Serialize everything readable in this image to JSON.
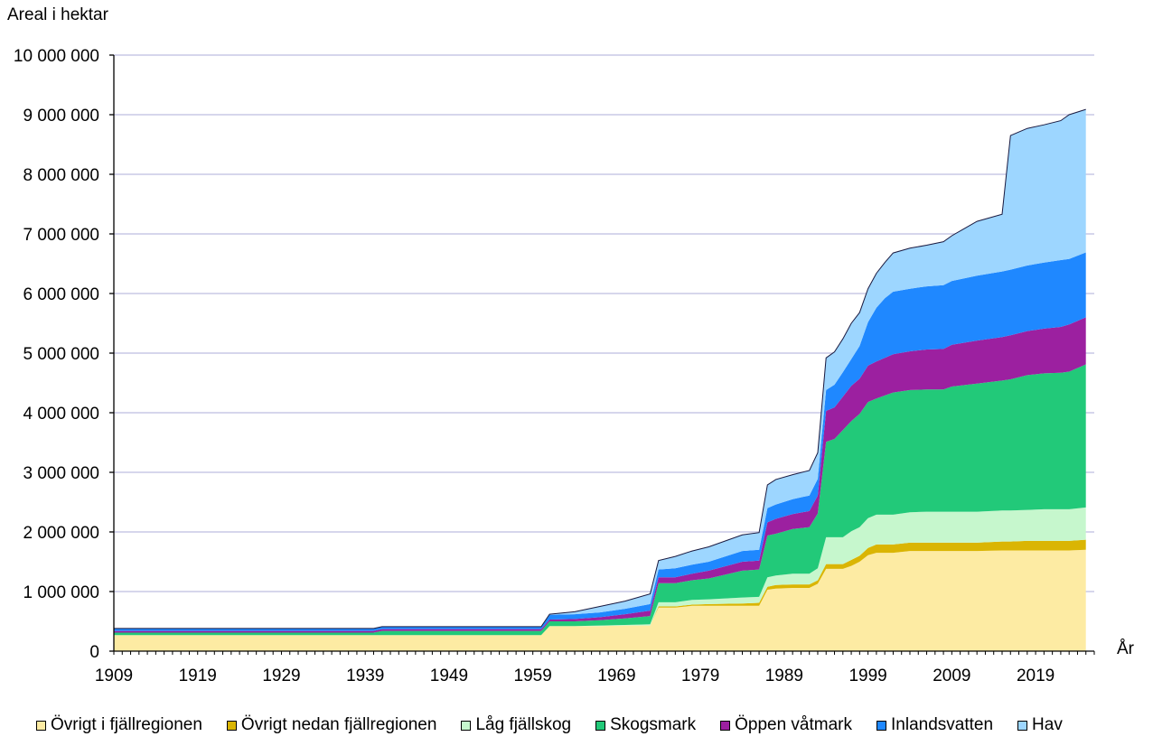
{
  "chart_data": {
    "type": "area",
    "stacked": true,
    "ylabel": "Areal i hektar",
    "xlabel": "År",
    "ylim": [
      0,
      10000000
    ],
    "xlim": [
      1909,
      2026
    ],
    "grid": true,
    "legend_position": "bottom",
    "yticks": [
      0,
      1000000,
      2000000,
      3000000,
      4000000,
      5000000,
      6000000,
      7000000,
      8000000,
      9000000,
      10000000
    ],
    "ytick_labels": [
      "0",
      "1 000 000",
      "2 000 000",
      "3 000 000",
      "4 000 000",
      "5 000 000",
      "6 000 000",
      "7 000 000",
      "8 000 000",
      "9 000 000",
      "10 000 000"
    ],
    "xticks": [
      1909,
      1919,
      1929,
      1939,
      1949,
      1959,
      1969,
      1979,
      1989,
      1999,
      2009,
      2019
    ],
    "x": [
      1909,
      1930,
      1939,
      1940,
      1941,
      1960,
      1961,
      1964,
      1967,
      1970,
      1973,
      1974,
      1976,
      1978,
      1980,
      1984,
      1986,
      1987,
      1988,
      1990,
      1992,
      1993,
      1994,
      1995,
      1996,
      1997,
      1998,
      1999,
      2000,
      2001,
      2002,
      2004,
      2006,
      2008,
      2009,
      2012,
      2015,
      2016,
      2018,
      2020,
      2022,
      2023,
      2025
    ],
    "series": [
      {
        "name": "Övrigt i fjällregionen",
        "color": "#FDEBA3",
        "values": [
          270000,
          270000,
          270000,
          270000,
          270000,
          270000,
          420000,
          420000,
          420000,
          430000,
          430000,
          730000,
          730000,
          760000,
          760000,
          760000,
          760000,
          1030000,
          1050000,
          1060000,
          1060000,
          1130000,
          1380000,
          1380000,
          1380000,
          1430000,
          1500000,
          1610000,
          1650000,
          1650000,
          1650000,
          1680000,
          1680000,
          1680000,
          1680000,
          1680000,
          1690000,
          1690000,
          1690000,
          1690000,
          1690000,
          1690000,
          1700000
        ]
      },
      {
        "name": "Övrigt nedan fjällregionen",
        "color": "#DAB503",
        "values": [
          0,
          0,
          0,
          0,
          0,
          0,
          0,
          0,
          0,
          0,
          0,
          20000,
          20000,
          20000,
          30000,
          40000,
          50000,
          50000,
          60000,
          60000,
          60000,
          60000,
          80000,
          80000,
          80000,
          100000,
          100000,
          120000,
          140000,
          140000,
          140000,
          140000,
          140000,
          140000,
          140000,
          140000,
          150000,
          150000,
          160000,
          160000,
          160000,
          160000,
          170000
        ]
      },
      {
        "name": "Låg fjällskog",
        "color": "#C6F7CD",
        "values": [
          0,
          0,
          0,
          0,
          0,
          0,
          0,
          0,
          10000,
          10000,
          20000,
          70000,
          70000,
          80000,
          80000,
          100000,
          100000,
          160000,
          160000,
          180000,
          180000,
          200000,
          450000,
          450000,
          450000,
          480000,
          480000,
          500000,
          500000,
          500000,
          500000,
          510000,
          520000,
          520000,
          520000,
          520000,
          520000,
          520000,
          520000,
          530000,
          530000,
          530000,
          540000
        ]
      },
      {
        "name": "Skogsmark",
        "color": "#22C979",
        "values": [
          40000,
          40000,
          40000,
          40000,
          70000,
          70000,
          80000,
          80000,
          90000,
          110000,
          140000,
          320000,
          320000,
          330000,
          350000,
          450000,
          460000,
          700000,
          700000,
          750000,
          780000,
          920000,
          1600000,
          1650000,
          1800000,
          1850000,
          1900000,
          1950000,
          1950000,
          2000000,
          2050000,
          2050000,
          2050000,
          2050000,
          2100000,
          2150000,
          2180000,
          2200000,
          2260000,
          2280000,
          2290000,
          2310000,
          2400000
        ]
      },
      {
        "name": "Öppen våtmark",
        "color": "#9C20A0",
        "values": [
          30000,
          30000,
          30000,
          30000,
          30000,
          30000,
          30000,
          40000,
          50000,
          70000,
          90000,
          100000,
          100000,
          110000,
          130000,
          150000,
          150000,
          220000,
          250000,
          250000,
          270000,
          300000,
          520000,
          530000,
          560000,
          590000,
          590000,
          610000,
          620000,
          630000,
          640000,
          650000,
          670000,
          680000,
          700000,
          720000,
          730000,
          740000,
          740000,
          750000,
          770000,
          790000,
          790000
        ]
      },
      {
        "name": "Inlandsvatten",
        "color": "#1F88FF",
        "values": [
          40000,
          40000,
          40000,
          40000,
          40000,
          40000,
          80000,
          80000,
          80000,
          90000,
          110000,
          130000,
          150000,
          150000,
          150000,
          180000,
          180000,
          240000,
          240000,
          250000,
          260000,
          280000,
          350000,
          380000,
          410000,
          450000,
          550000,
          730000,
          900000,
          1000000,
          1050000,
          1050000,
          1060000,
          1070000,
          1070000,
          1090000,
          1100000,
          1100000,
          1100000,
          1110000,
          1120000,
          1100000,
          1090000
        ]
      },
      {
        "name": "Hav",
        "color": "#9DD6FF",
        "values": [
          0,
          0,
          0,
          0,
          0,
          0,
          10000,
          40000,
          100000,
          130000,
          170000,
          150000,
          200000,
          230000,
          250000,
          270000,
          290000,
          390000,
          420000,
          410000,
          420000,
          440000,
          540000,
          550000,
          560000,
          600000,
          560000,
          560000,
          580000,
          600000,
          650000,
          680000,
          690000,
          730000,
          760000,
          910000,
          960000,
          2250000,
          2300000,
          2310000,
          2340000,
          2420000,
          2400000
        ]
      }
    ]
  }
}
